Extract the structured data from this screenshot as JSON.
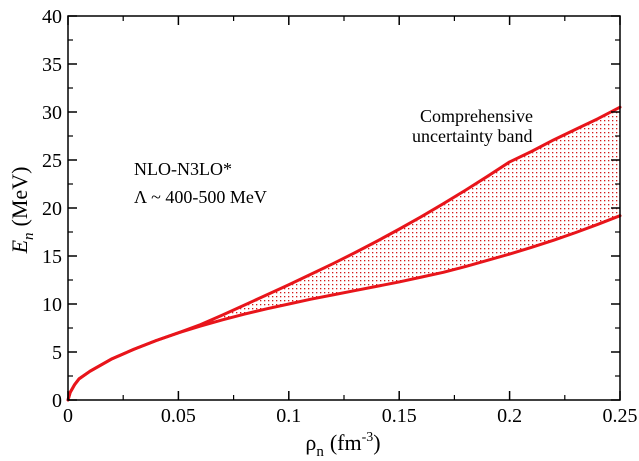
{
  "chart_data": {
    "type": "area",
    "title": "",
    "x_axis": {
      "label_main": "ρ",
      "label_sub": "n",
      "label_unit_prefix": "(fm",
      "label_unit_sup": "-3",
      "label_unit_suffix": ")",
      "range": [
        0,
        0.25
      ],
      "ticks": [
        0,
        0.05,
        0.1,
        0.15,
        0.2,
        0.25
      ],
      "tick_labels": [
        "0",
        "0.05",
        "0.1",
        "0.15",
        "0.2",
        "0.25"
      ]
    },
    "y_axis": {
      "label_main": "E",
      "label_sub": "n",
      "label_unit": "(MeV)",
      "range": [
        0,
        40
      ],
      "ticks": [
        0,
        5,
        10,
        15,
        20,
        25,
        30,
        35,
        40
      ],
      "tick_labels": [
        "0",
        "5",
        "10",
        "15",
        "20",
        "25",
        "30",
        "35",
        "40"
      ]
    },
    "annotations": {
      "model_line1": "NLO-N3LO*",
      "model_line2": "Λ ~ 400-500 MeV",
      "band_line1": "Comprehensive",
      "band_line2": "uncertainty band"
    },
    "grid": false,
    "series": [
      {
        "role": "upper",
        "x": [
          0,
          0.001,
          0.003,
          0.005,
          0.01,
          0.02,
          0.03,
          0.04,
          0.05,
          0.06,
          0.07,
          0.08,
          0.09,
          0.1,
          0.11,
          0.12,
          0.13,
          0.14,
          0.15,
          0.16,
          0.17,
          0.18,
          0.19,
          0.2,
          0.21,
          0.22,
          0.23,
          0.24,
          0.25
        ],
        "y": [
          0,
          0.8,
          1.6,
          2.2,
          3.0,
          4.3,
          5.3,
          6.2,
          7.0,
          7.85,
          8.85,
          9.9,
          10.95,
          12.0,
          13.1,
          14.2,
          15.35,
          16.55,
          17.8,
          19.1,
          20.45,
          21.85,
          23.3,
          24.8,
          25.9,
          27.1,
          28.2,
          29.3,
          30.5
        ]
      },
      {
        "role": "lower",
        "x": [
          0,
          0.001,
          0.003,
          0.005,
          0.01,
          0.02,
          0.03,
          0.04,
          0.05,
          0.06,
          0.07,
          0.08,
          0.09,
          0.1,
          0.11,
          0.12,
          0.13,
          0.14,
          0.15,
          0.16,
          0.17,
          0.18,
          0.19,
          0.2,
          0.21,
          0.22,
          0.23,
          0.24,
          0.25
        ],
        "y": [
          0,
          0.8,
          1.6,
          2.2,
          3.0,
          4.3,
          5.3,
          6.2,
          7.0,
          7.7,
          8.35,
          8.95,
          9.5,
          10.0,
          10.5,
          10.95,
          11.4,
          11.85,
          12.3,
          12.8,
          13.3,
          13.9,
          14.55,
          15.2,
          15.9,
          16.65,
          17.45,
          18.3,
          19.2
        ]
      }
    ],
    "colors": {
      "curve": "#e8151b",
      "band_fill": "#d21919",
      "axis": "#000000"
    }
  }
}
